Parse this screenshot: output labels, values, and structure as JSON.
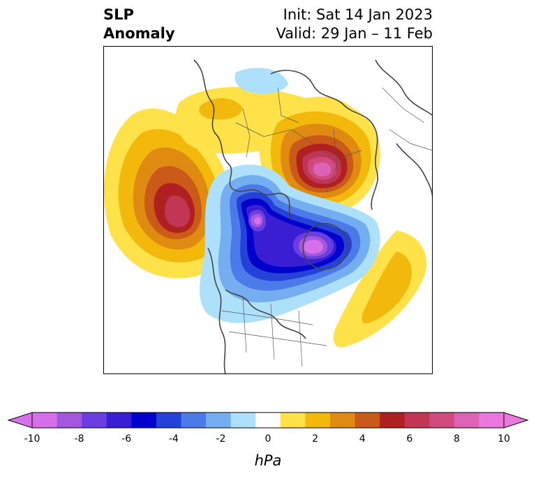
{
  "title": {
    "left_line1": "SLP",
    "left_line2": "Anomaly",
    "init": "Init: Sat 14 Jan 2023",
    "valid": "Valid: 29 Jan – 11 Feb"
  },
  "map": {
    "projection": "north-polar stereographic",
    "anomalies": [
      {
        "region": "north-pacific-aleutian",
        "sign": "positive",
        "peak_hpa": 9
      },
      {
        "region": "eurasian-arctic-siberia",
        "sign": "positive",
        "peak_hpa": 10
      },
      {
        "region": "northern-europe",
        "sign": "positive",
        "peak_hpa": 3
      },
      {
        "region": "central-atlantic",
        "sign": "positive",
        "peak_hpa": 3
      },
      {
        "region": "greenland-icelandic",
        "sign": "negative",
        "peak_hpa": -10
      },
      {
        "region": "canadian-arctic",
        "sign": "negative",
        "peak_hpa": -9
      },
      {
        "region": "eastern-north-america",
        "sign": "negative",
        "peak_hpa": -3
      }
    ]
  },
  "colorbar": {
    "unit": "hPa",
    "tick_labels": [
      "-10",
      "-8",
      "-6",
      "-4",
      "-2",
      "0",
      "2",
      "4",
      "6",
      "8",
      "10"
    ],
    "tick_values": [
      -10,
      -8,
      -6,
      -4,
      -2,
      0,
      2,
      4,
      6,
      8,
      10
    ],
    "colors": [
      "#d670ea",
      "#a357de",
      "#6a3ee0",
      "#3a1ed4",
      "#0000cc",
      "#2442d8",
      "#4c7ae8",
      "#75aef0",
      "#ade0fa",
      "#ffffff",
      "#ffe24a",
      "#f2b80c",
      "#df8a10",
      "#c95a18",
      "#b12020",
      "#c23655",
      "#d04a7e",
      "#dc62b4",
      "#ea78dc"
    ],
    "extend": "both"
  }
}
